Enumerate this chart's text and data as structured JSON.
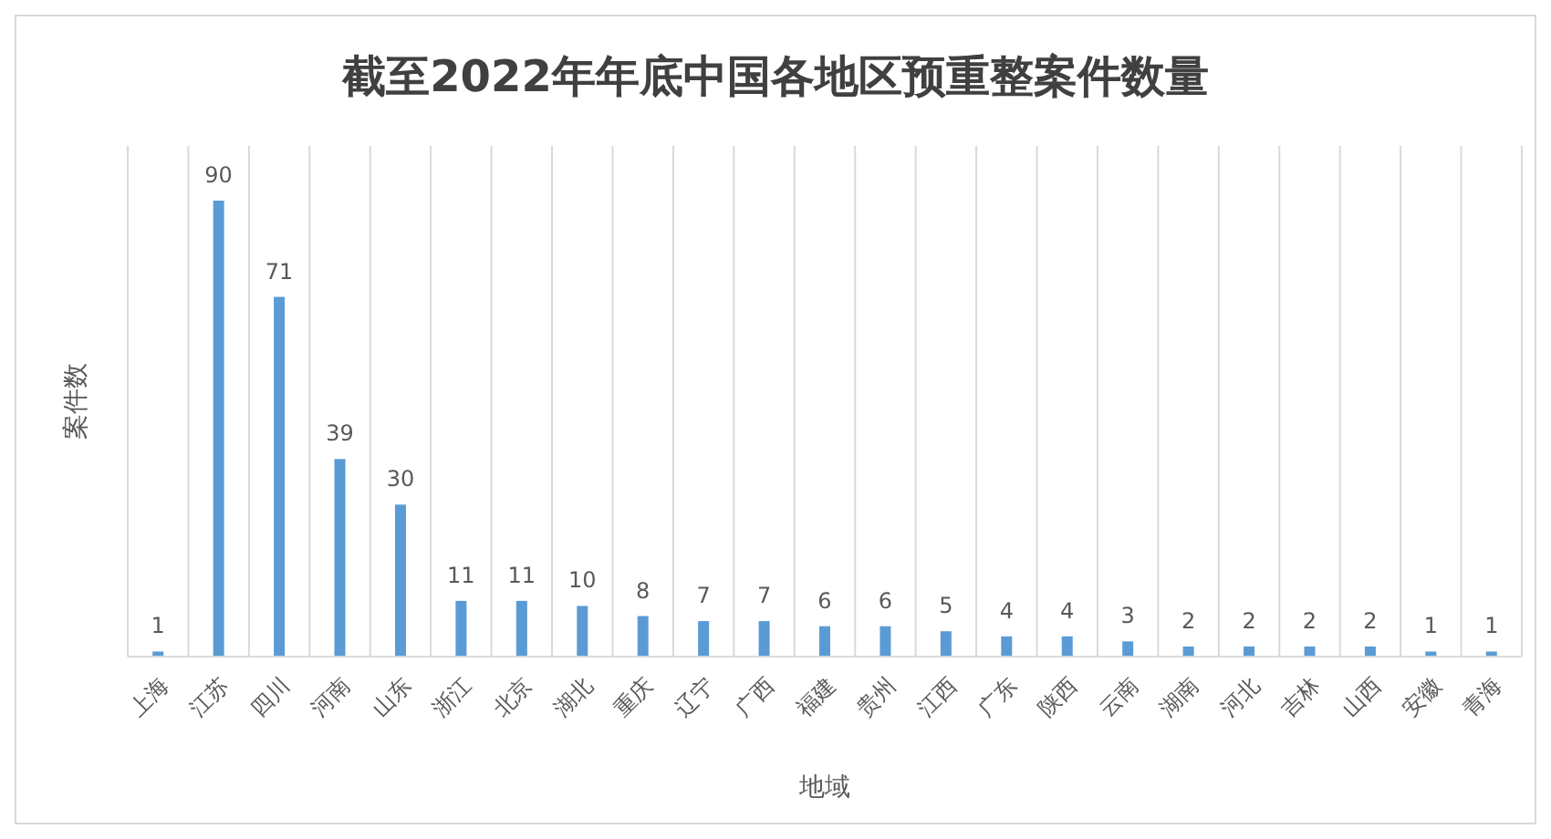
{
  "chart_data": {
    "type": "bar",
    "title": "截至2022年年底中国各地区预重整案件数量",
    "xlabel": "地域",
    "ylabel": "案件数",
    "categories": [
      "上海",
      "江苏",
      "四川",
      "河南",
      "山东",
      "浙江",
      "北京",
      "湖北",
      "重庆",
      "辽宁",
      "广西",
      "福建",
      "贵州",
      "江西",
      "广东",
      "陕西",
      "云南",
      "湖南",
      "河北",
      "吉林",
      "山西",
      "安徽",
      "青海"
    ],
    "values": [
      1,
      90,
      71,
      39,
      30,
      11,
      11,
      10,
      8,
      7,
      7,
      6,
      6,
      5,
      4,
      4,
      3,
      2,
      2,
      2,
      2,
      1,
      1
    ],
    "color": "#5b9bd5",
    "data_labels": true,
    "grid": "x",
    "legend": false
  }
}
